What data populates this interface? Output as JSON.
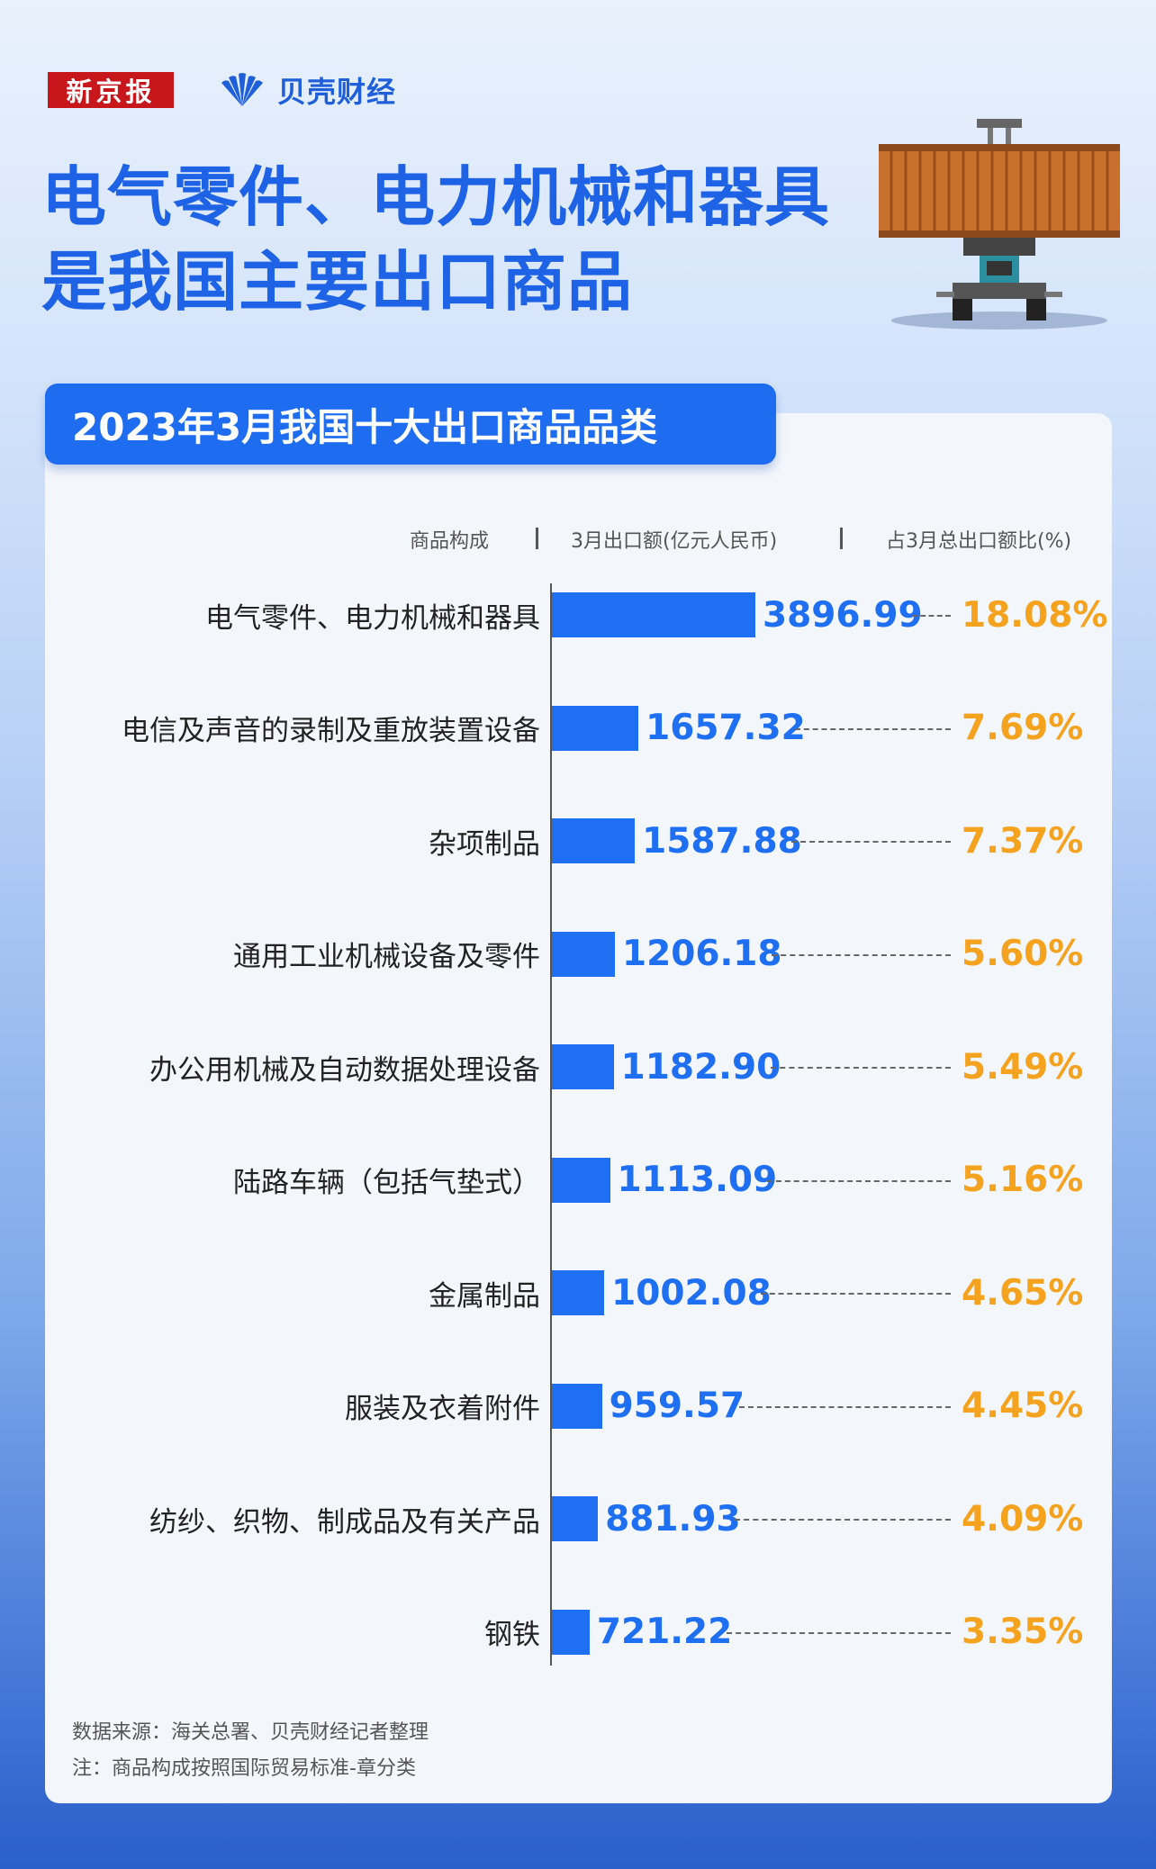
{
  "header": {
    "logo_xjb": "新京报",
    "logo_bk": "贝壳财经",
    "headline_line1": "电气零件、电力机械和器具",
    "headline_line2": "是我国主要出口商品"
  },
  "card": {
    "title": "2023年3月我国十大出口商品品类",
    "col_category": "商品构成",
    "col_amount": "3月出口额(亿元人民币)",
    "col_share": "占3月总出口额比(%)",
    "source": "数据来源：海关总署、贝壳财经记者整理",
    "note": "注：商品构成按照国际贸易标准-章分类"
  },
  "colors": {
    "bar": "#1f6ff2",
    "value": "#1f6ff2",
    "share": "#f5a21f",
    "title_bg": "#1e6cf0"
  },
  "chart_data": {
    "type": "bar",
    "title": "2023年3月我国十大出口商品品类",
    "xlabel": "3月出口额(亿元人民币)",
    "ylabel": "商品构成",
    "categories": [
      "电气零件、电力机械和器具",
      "电信及声音的录制及重放装置设备",
      "杂项制品",
      "通用工业机械设备及零件",
      "办公用机械及自动数据处理设备",
      "陆路车辆（包括气垫式）",
      "金属制品",
      "服装及衣着附件",
      "纺纱、织物、制成品及有关产品",
      "钢铁"
    ],
    "series": [
      {
        "name": "3月出口额(亿元人民币)",
        "values": [
          3896.99,
          1657.32,
          1587.88,
          1206.18,
          1182.9,
          1113.09,
          1002.08,
          959.57,
          881.93,
          721.22
        ]
      },
      {
        "name": "占3月总出口额比(%)",
        "values": [
          18.08,
          7.69,
          7.37,
          5.6,
          5.49,
          5.16,
          4.65,
          4.45,
          4.09,
          3.35
        ]
      }
    ],
    "value_labels": [
      "3896.99",
      "1657.32",
      "1587.88",
      "1206.18",
      "1182.90",
      "1113.09",
      "1002.08",
      "959.57",
      "881.93",
      "721.22"
    ],
    "share_labels": [
      "18.08%",
      "7.69%",
      "7.37%",
      "5.60%",
      "5.49%",
      "5.16%",
      "4.65%",
      "4.45%",
      "4.09%",
      "3.35%"
    ]
  }
}
